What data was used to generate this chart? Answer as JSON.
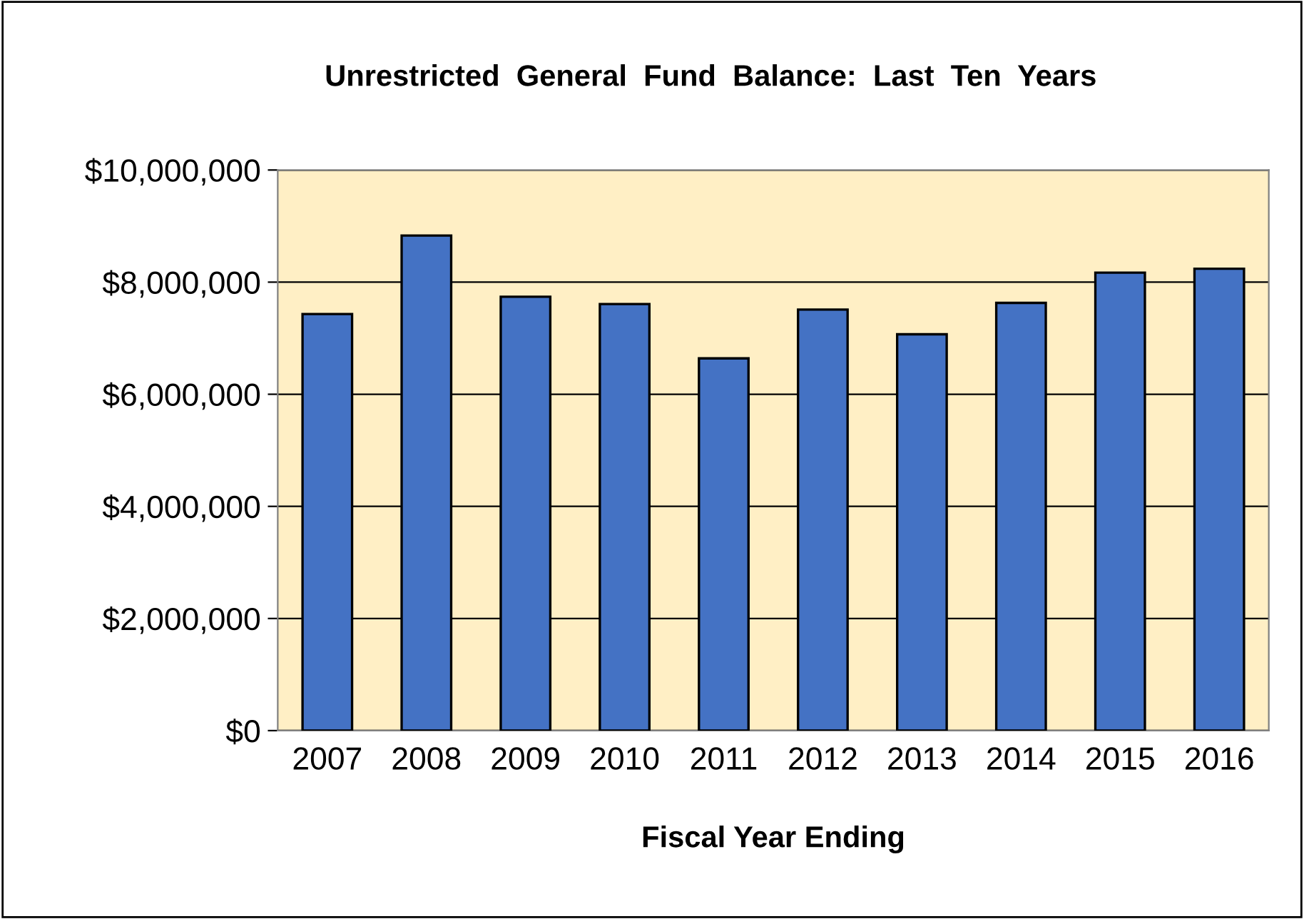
{
  "chart_data": {
    "type": "bar",
    "title": "Unrestricted  General  Fund  Balance:  Last  Ten  Years",
    "xlabel": "Fiscal Year Ending",
    "categories": [
      "2007",
      "2008",
      "2009",
      "2010",
      "2011",
      "2012",
      "2013",
      "2014",
      "2015",
      "2016"
    ],
    "values": [
      7430000,
      8830000,
      7740000,
      7610000,
      6640000,
      7510000,
      7070000,
      7630000,
      8170000,
      8240000
    ],
    "color": "#4472c4",
    "ylim": [
      0,
      10000000
    ],
    "yticks": [
      {
        "value": 0,
        "label": "$0"
      },
      {
        "value": 2000000,
        "label": "$2,000,000"
      },
      {
        "value": 4000000,
        "label": "$4,000,000"
      },
      {
        "value": 6000000,
        "label": "$6,000,000"
      },
      {
        "value": 8000000,
        "label": "$8,000,000"
      },
      {
        "value": 10000000,
        "label": "$10,000,000"
      }
    ],
    "grid": "y",
    "legend": false
  }
}
